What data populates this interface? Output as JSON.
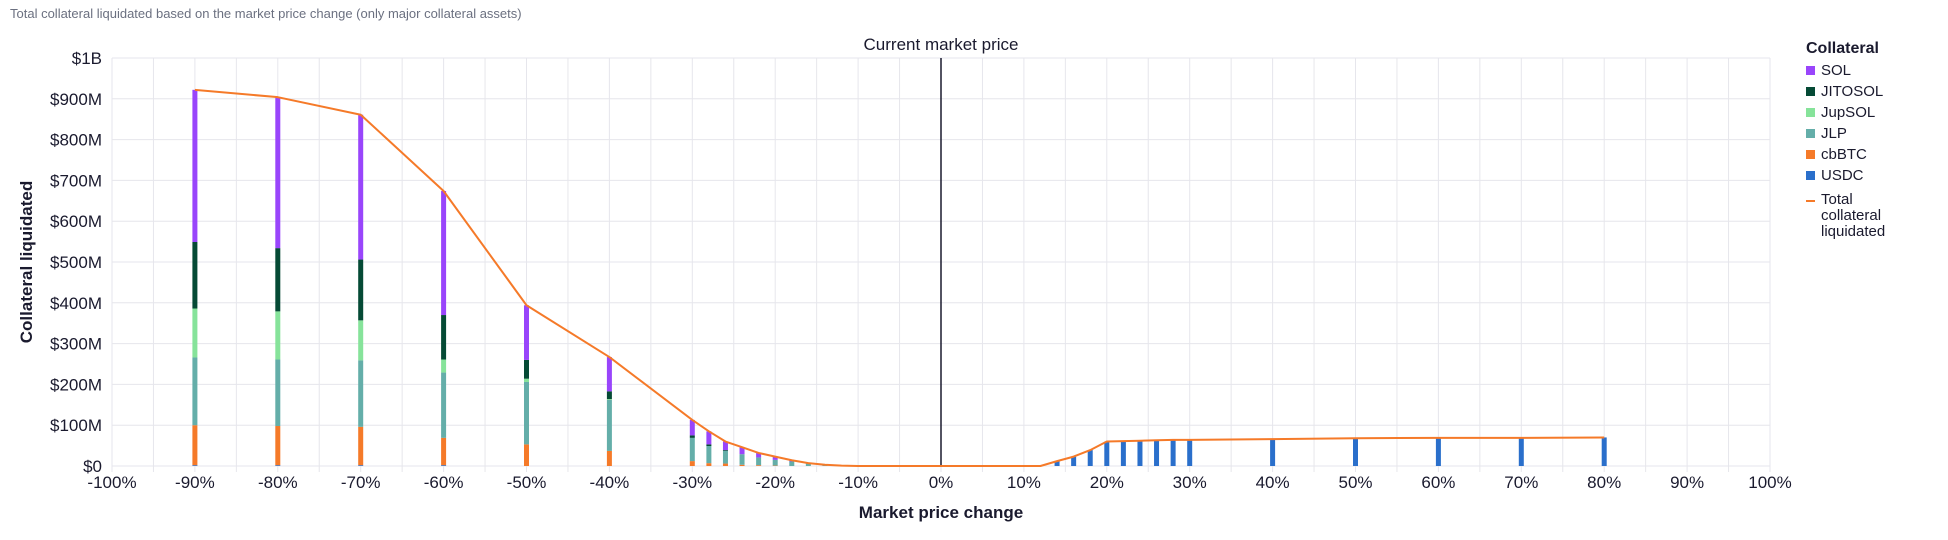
{
  "subtitle": "Total collateral liquidated based on the market price change (only major collateral assets)",
  "chart_data": {
    "type": "bar",
    "stacked": true,
    "xlabel": "Market price change",
    "ylabel": "Collateral liquidated",
    "xlim": [
      -100,
      100
    ],
    "ylim": [
      0,
      1000
    ],
    "y_unit": "$M",
    "x_ticks": [
      "-100%",
      "-90%",
      "-80%",
      "-70%",
      "-60%",
      "-50%",
      "-40%",
      "-30%",
      "-20%",
      "-10%",
      "0%",
      "10%",
      "20%",
      "30%",
      "40%",
      "50%",
      "60%",
      "70%",
      "80%",
      "90%",
      "100%"
    ],
    "y_ticks": [
      "$0",
      "$100M",
      "$200M",
      "$300M",
      "$400M",
      "$500M",
      "$600M",
      "$700M",
      "$800M",
      "$900M",
      "$1B"
    ],
    "grid": true,
    "annotation": {
      "x": 0,
      "label": "Current market price"
    },
    "legend_title": "Collateral",
    "legend_position": "right",
    "line_series": {
      "name": "Total collateral liquidated",
      "color": "#f57a29"
    },
    "series_order": [
      "USDC",
      "cbBTC",
      "JLP",
      "JupSOL",
      "JITOSOL",
      "SOL"
    ],
    "legend_order": [
      "SOL",
      "JITOSOL",
      "JupSOL",
      "JLP",
      "cbBTC",
      "USDC"
    ],
    "colors": {
      "SOL": "#9945fb",
      "JITOSOL": "#054a35",
      "JupSOL": "#86e39a",
      "JLP": "#64aea9",
      "cbBTC": "#f57a29",
      "USDC": "#2a6fcb"
    },
    "x": [
      -90,
      -80,
      -70,
      -60,
      -50,
      -40,
      -30,
      -28,
      -26,
      -24,
      -22,
      -20,
      -18,
      -16,
      -14,
      -12,
      -10,
      0,
      10,
      12,
      14,
      16,
      18,
      20,
      22,
      24,
      26,
      28,
      30,
      40,
      50,
      60,
      70,
      80
    ],
    "series": [
      {
        "name": "USDC",
        "values": [
          2,
          2,
          2,
          2,
          0,
          0,
          0,
          0,
          0,
          0,
          0,
          0,
          0,
          0,
          0,
          0,
          0,
          0,
          0,
          0,
          12,
          23,
          39,
          60,
          61,
          62,
          63,
          64,
          64,
          66,
          68,
          69,
          69,
          70
        ]
      },
      {
        "name": "cbBTC",
        "values": [
          98,
          96,
          94,
          67,
          53,
          37,
          12,
          7,
          6,
          3,
          2,
          1,
          0,
          0,
          0,
          0,
          0,
          0,
          0,
          0,
          0,
          0,
          0,
          0,
          0,
          0,
          0,
          0,
          0,
          0,
          0,
          0,
          0,
          0
        ]
      },
      {
        "name": "JLP",
        "values": [
          166,
          163,
          163,
          160,
          153,
          125,
          57,
          42,
          31,
          26,
          19,
          14,
          11,
          7,
          3,
          1,
          0,
          0,
          0,
          0,
          0,
          0,
          0,
          0,
          0,
          0,
          0,
          0,
          0,
          0,
          0,
          0,
          0,
          0
        ]
      },
      {
        "name": "JupSOL",
        "values": [
          120,
          118,
          98,
          32,
          8,
          2,
          0,
          0,
          0,
          0,
          0,
          0,
          0,
          0,
          0,
          0,
          0,
          0,
          0,
          0,
          0,
          0,
          0,
          0,
          0,
          0,
          0,
          0,
          0,
          0,
          0,
          0,
          0,
          0
        ]
      },
      {
        "name": "JITOSOL",
        "values": [
          163,
          155,
          149,
          109,
          46,
          19,
          6,
          4,
          2,
          0,
          0,
          0,
          0,
          0,
          0,
          0,
          0,
          0,
          0,
          0,
          0,
          0,
          0,
          0,
          0,
          0,
          0,
          0,
          0,
          0,
          0,
          0,
          0,
          0
        ]
      },
      {
        "name": "SOL",
        "values": [
          373,
          370,
          355,
          304,
          134,
          84,
          38,
          32,
          21,
          17,
          11,
          8,
          3,
          0,
          0,
          0,
          0,
          0,
          0,
          0,
          0,
          0,
          0,
          0,
          0,
          0,
          0,
          0,
          0,
          0,
          0,
          0,
          0,
          0
        ]
      }
    ]
  }
}
